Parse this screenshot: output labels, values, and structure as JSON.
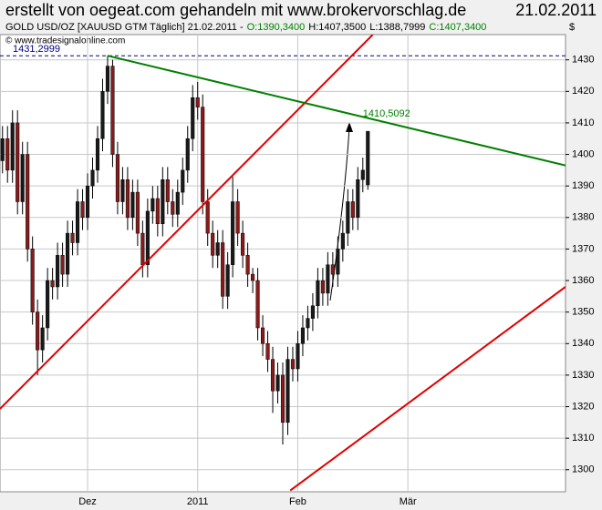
{
  "chart_data": {
    "type": "candlestick",
    "title": "erstellt von oegeat.com gehandeln mit www.brokervorschlag.de",
    "date": "21.02.2011",
    "info": [
      {
        "text": "GOLD USD/OZ [XAUUSD GTM  Täglich] 21.02.2011 -",
        "color": "#000000"
      },
      {
        "text": "O:1390,3400",
        "color": "#008000"
      },
      {
        "text": "H:1407,3500",
        "color": "#000000"
      },
      {
        "text": "L:1388,7999",
        "color": "#000000"
      },
      {
        "text": "C:1407,3400",
        "color": "#008000"
      }
    ],
    "copyright": "© www.tradesignalonline.com",
    "y_unit": "$",
    "categories": [
      null,
      null,
      null,
      null,
      null,
      null,
      null,
      null,
      null,
      null,
      null,
      null,
      null,
      null,
      null,
      null,
      null,
      "Dez",
      null,
      null,
      null,
      null,
      null,
      null,
      null,
      null,
      null,
      null,
      null,
      null,
      null,
      null,
      null,
      null,
      null,
      null,
      null,
      null,
      null,
      "2011",
      null,
      null,
      null,
      null,
      null,
      null,
      null,
      null,
      null,
      null,
      null,
      null,
      null,
      null,
      null,
      null,
      null,
      null,
      null,
      "Feb",
      null,
      null,
      null,
      null,
      null,
      null,
      null,
      null,
      null,
      null,
      null,
      null,
      null,
      null,
      null,
      null,
      null,
      null,
      null,
      null,
      null,
      "Mär",
      null,
      null,
      null,
      null,
      null,
      null,
      null,
      null,
      null,
      null,
      null,
      null,
      null,
      null,
      null,
      null,
      null,
      null,
      null,
      null,
      null,
      null,
      null,
      null,
      null,
      null,
      null,
      null,
      null,
      null,
      null
    ],
    "up_color": "#1a1a1a",
    "down_color": "#8b1a1a",
    "open": [
      1398,
      1405,
      1395,
      1410,
      1385,
      1400,
      1370,
      1350,
      1338,
      1345,
      1360,
      1358,
      1368,
      1362,
      1375,
      1372,
      1385,
      1380,
      1390,
      1395,
      1405,
      1420,
      1428,
      1400,
      1385,
      1392,
      1380,
      1388,
      1375,
      1365,
      1382,
      1386,
      1378,
      1392,
      1385,
      1381,
      1388,
      1395,
      1405,
      1418,
      1415,
      1385,
      1375,
      1368,
      1372,
      1355,
      1365,
      1385,
      1375,
      1368,
      1362,
      1360,
      1345,
      1340,
      1335,
      1325,
      1330,
      1315,
      1335,
      1332,
      1340,
      1345,
      1348,
      1352,
      1360,
      1356,
      1365,
      1362,
      1370,
      1375,
      1385,
      1380,
      1392,
      1390.34,
      null,
      null,
      null,
      null,
      null,
      null,
      null,
      null,
      null,
      null,
      null,
      null,
      null,
      null,
      null,
      null,
      null,
      null,
      null,
      null,
      null,
      null,
      null,
      null,
      null,
      null,
      null,
      null,
      null,
      null,
      null,
      null,
      null,
      null,
      null,
      null,
      null,
      null,
      null
    ],
    "high": [
      1409,
      1409,
      1414,
      1414,
      1404,
      1404,
      1374,
      1354,
      1349,
      1364,
      1364,
      1372,
      1372,
      1379,
      1379,
      1389,
      1389,
      1394,
      1399,
      1409,
      1424,
      1431.3,
      1430,
      1404,
      1396,
      1396,
      1392,
      1392,
      1379,
      1386,
      1390,
      1390,
      1396,
      1396,
      1389,
      1392,
      1399,
      1409,
      1422,
      1423,
      1419,
      1389,
      1379,
      1376,
      1376,
      1369,
      1393,
      1389,
      1379,
      1372,
      1364,
      1364,
      1349,
      1344,
      1339,
      1334,
      1334,
      1339,
      1339,
      1344,
      1349,
      1352,
      1356,
      1364,
      1364,
      1369,
      1369,
      1374,
      1379,
      1389,
      1389,
      1396,
      1399,
      1407.35,
      null,
      null,
      null,
      null,
      null,
      null,
      null,
      null,
      null,
      null,
      null,
      null,
      null,
      null,
      null,
      null,
      null,
      null,
      null,
      null,
      null,
      null,
      null,
      null,
      null,
      null,
      null,
      null,
      null,
      null,
      null,
      null,
      null,
      null,
      null,
      null,
      null,
      null,
      null
    ],
    "low": [
      1394,
      1391,
      1391,
      1381,
      1381,
      1366,
      1346,
      1330,
      1334,
      1341,
      1354,
      1354,
      1358,
      1358,
      1368,
      1368,
      1376,
      1376,
      1386,
      1391,
      1401,
      1416,
      1396,
      1381,
      1381,
      1376,
      1376,
      1371,
      1361,
      1361,
      1378,
      1374,
      1374,
      1381,
      1377,
      1377,
      1384,
      1391,
      1401,
      1411,
      1381,
      1371,
      1364,
      1364,
      1351,
      1351,
      1361,
      1371,
      1364,
      1358,
      1356,
      1341,
      1336,
      1331,
      1318,
      1321,
      1308,
      1311,
      1328,
      1328,
      1336,
      1341,
      1344,
      1348,
      1352,
      1352,
      1358,
      1358,
      1366,
      1371,
      1376,
      1376,
      1388,
      1388.7999,
      null,
      null,
      null,
      null,
      null,
      null,
      null,
      null,
      null,
      null,
      null,
      null,
      null,
      null,
      null,
      null,
      null,
      null,
      null,
      null,
      null,
      null,
      null,
      null,
      null,
      null,
      null,
      null,
      null,
      null,
      null,
      null,
      null,
      null,
      null,
      null,
      null,
      null,
      null
    ],
    "close": [
      1405,
      1395,
      1410,
      1385,
      1400,
      1370,
      1350,
      1338,
      1345,
      1360,
      1358,
      1368,
      1362,
      1375,
      1372,
      1385,
      1380,
      1390,
      1395,
      1405,
      1420,
      1428,
      1400,
      1385,
      1392,
      1380,
      1388,
      1375,
      1365,
      1382,
      1386,
      1378,
      1392,
      1385,
      1381,
      1388,
      1395,
      1405,
      1418,
      1415,
      1385,
      1375,
      1368,
      1372,
      1355,
      1365,
      1385,
      1375,
      1368,
      1362,
      1360,
      1345,
      1340,
      1335,
      1325,
      1330,
      1315,
      1335,
      1332,
      1340,
      1345,
      1348,
      1352,
      1360,
      1356,
      1365,
      1362,
      1370,
      1375,
      1385,
      1380,
      1392,
      1395,
      1407.34,
      null,
      null,
      null,
      null,
      null,
      null,
      null,
      null,
      null,
      null,
      null,
      null,
      null,
      null,
      null,
      null,
      null,
      null,
      null,
      null,
      null,
      null,
      null,
      null,
      null,
      null,
      null,
      null,
      null,
      null,
      null,
      null,
      null,
      null,
      null,
      null,
      null,
      null,
      null
    ],
    "trend_lines": [
      {
        "color": "#e00000",
        "x": [
          -0.5,
          74
        ],
        "y": [
          1319.3,
          1438
        ]
      },
      {
        "color": "#e00000",
        "x": [
          57.5,
          112.5
        ],
        "y": [
          1293.4,
          1358
        ]
      },
      {
        "color": "#008000",
        "x": [
          21,
          112.5
        ],
        "y": [
          1431.3,
          1396.5
        ]
      }
    ],
    "hlines": [
      {
        "value": 1431.2999,
        "label": "1431,2999",
        "color": "#000080"
      }
    ],
    "annotations": [
      {
        "text": "1410,5092",
        "x": 72,
        "y": 1410.5092,
        "color": "#008000"
      }
    ],
    "ylim": [
      1293,
      1438
    ],
    "yticks": [
      1300,
      1310,
      1320,
      1330,
      1340,
      1350,
      1360,
      1370,
      1380,
      1390,
      1400,
      1410,
      1420,
      1430
    ],
    "grid": true
  }
}
